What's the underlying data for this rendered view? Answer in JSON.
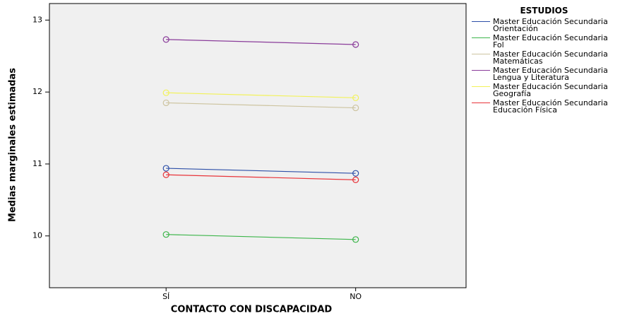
{
  "chart_data": {
    "type": "line",
    "xlabel": "CONTACTO CON DISCAPACIDAD",
    "ylabel": "Medias marginales estimadas",
    "legend_title": "ESTUDIOS",
    "categories": [
      "SÍ",
      "NO"
    ],
    "series": [
      {
        "name": "Master Educación Secundaria Orientación",
        "color": "#2d4fa8",
        "values": [
          10.94,
          10.87
        ]
      },
      {
        "name": "Master Educación Secundaria Fol",
        "color": "#3cb54a",
        "values": [
          10.02,
          9.95
        ]
      },
      {
        "name": "Master Educación Secundaria Matemáticas",
        "color": "#cdc4a0",
        "values": [
          11.85,
          11.78
        ]
      },
      {
        "name": "Master Educación Secundaria Lengua y Literatura",
        "color": "#8a3c9a",
        "values": [
          12.73,
          12.66
        ]
      },
      {
        "name": "Master Educación Secundaria Geografía",
        "color": "#f2f25a",
        "values": [
          11.99,
          11.92
        ]
      },
      {
        "name": "Master Educación Secundaria Educación Física",
        "color": "#e8343a",
        "values": [
          10.85,
          10.78
        ]
      }
    ],
    "ylim": [
      9.28,
      13.23
    ],
    "yticks": [
      10,
      11,
      12,
      13
    ],
    "grid": false
  }
}
